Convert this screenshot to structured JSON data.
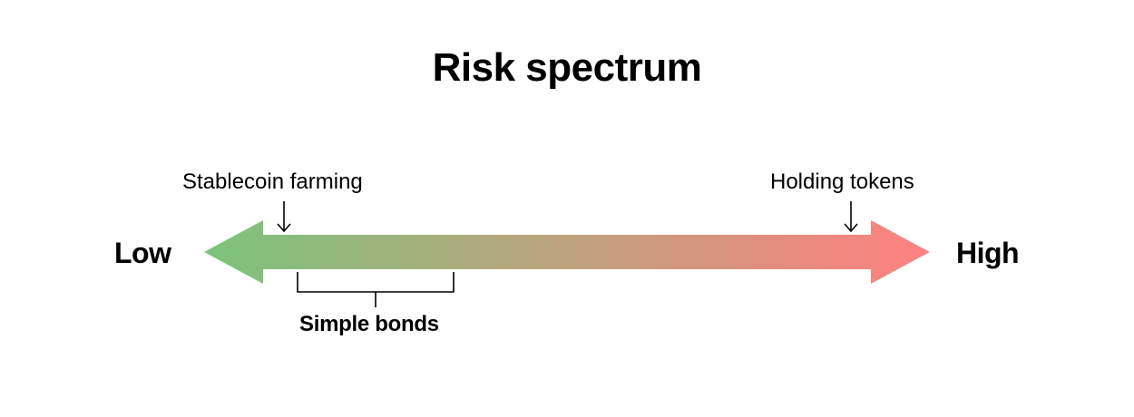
{
  "title": "Risk spectrum",
  "scale": {
    "low_label": "Low",
    "high_label": "High",
    "low_color": "#7cc47b",
    "high_color": "#ff8080"
  },
  "markers": {
    "stablecoin": "Stablecoin farming",
    "holding": "Holding tokens"
  },
  "range": {
    "label": "Simple bonds"
  }
}
